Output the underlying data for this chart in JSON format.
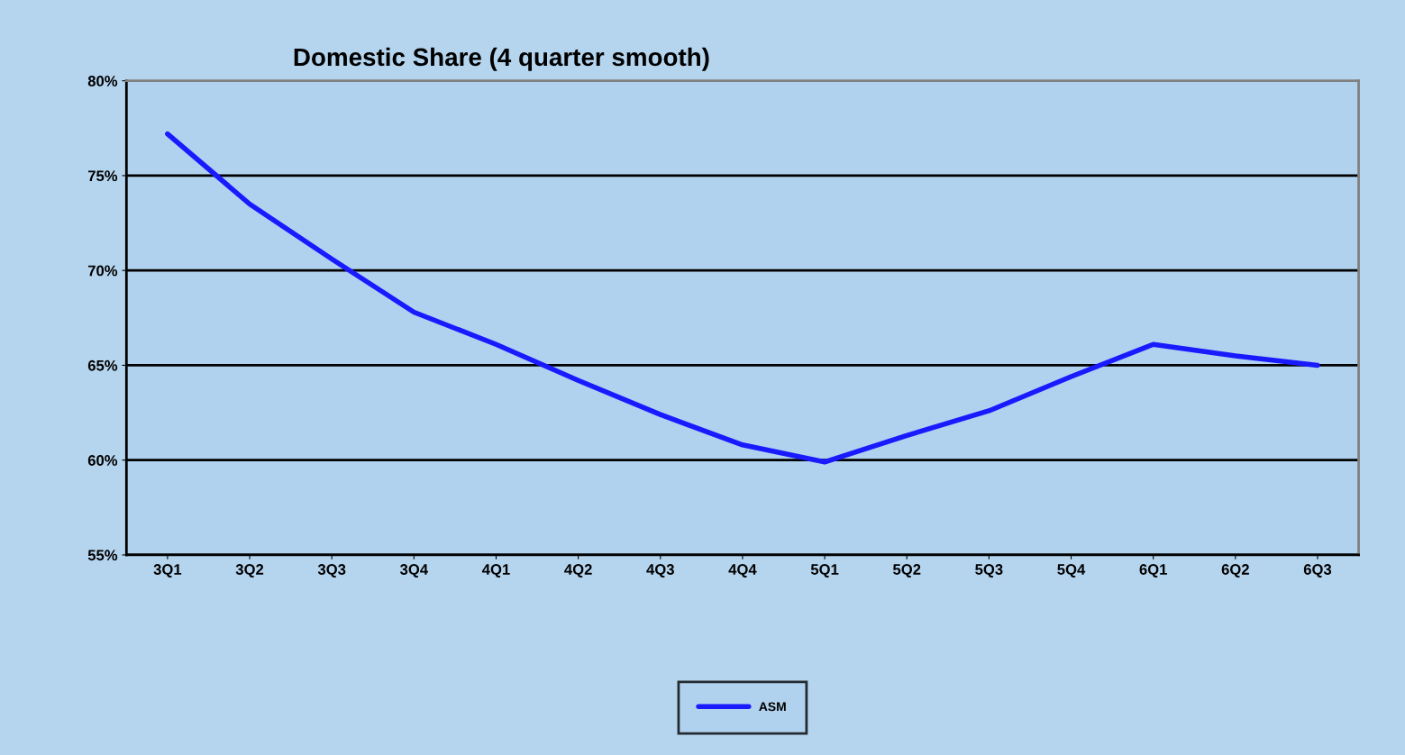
{
  "chart_data": {
    "type": "line",
    "title": "Domestic Share (4 quarter smooth)",
    "categories": [
      "3Q1",
      "3Q2",
      "3Q3",
      "3Q4",
      "4Q1",
      "4Q2",
      "4Q3",
      "4Q4",
      "5Q1",
      "5Q2",
      "5Q3",
      "5Q4",
      "6Q1",
      "6Q2",
      "6Q3"
    ],
    "series": [
      {
        "name": "ASM",
        "color": "#1a1aff",
        "values": [
          77.2,
          73.5,
          70.6,
          67.8,
          66.1,
          64.2,
          62.4,
          60.8,
          59.9,
          61.3,
          62.6,
          64.4,
          66.1,
          65.5,
          65.0
        ]
      }
    ],
    "ylim": [
      55,
      80
    ],
    "yticks": [
      {
        "value": 55,
        "label": "55%"
      },
      {
        "value": 60,
        "label": "60%"
      },
      {
        "value": 65,
        "label": "65%"
      },
      {
        "value": 70,
        "label": "70%"
      },
      {
        "value": 75,
        "label": "75%"
      },
      {
        "value": 80,
        "label": "80%"
      }
    ],
    "grid": "y",
    "legend": "bottom",
    "marker": "none",
    "line_style": "solid"
  }
}
